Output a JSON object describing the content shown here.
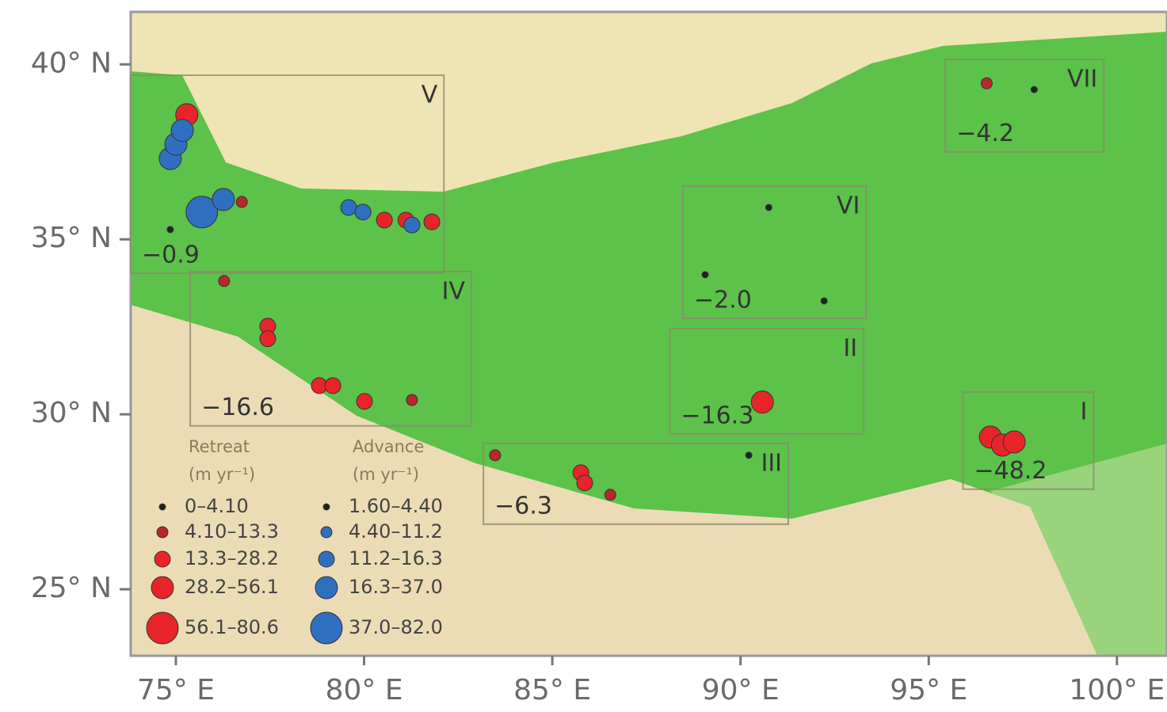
{
  "map": {
    "xlim": [
      73.8,
      101.33
    ],
    "ylim": [
      23.1,
      41.5
    ],
    "xticks": [
      {
        "value": 75,
        "label": "75° E"
      },
      {
        "value": 80,
        "label": "80° E"
      },
      {
        "value": 85,
        "label": "85° E"
      },
      {
        "value": 90,
        "label": "90° E"
      },
      {
        "value": 95,
        "label": "95° E"
      },
      {
        "value": 100,
        "label": "100° E"
      }
    ],
    "yticks": [
      {
        "value": 40,
        "label": "40° N"
      },
      {
        "value": 35,
        "label": "35° N"
      },
      {
        "value": 30,
        "label": "30° N"
      },
      {
        "value": 25,
        "label": "25° N"
      }
    ],
    "regions": [
      {
        "label": "V",
        "value": "−0.9",
        "lon": [
          73.8,
          82.12
        ],
        "lat": [
          34.03,
          39.69
        ]
      },
      {
        "label": "VII",
        "value": "−4.2",
        "lon": [
          95.44,
          99.65
        ],
        "lat": [
          37.5,
          40.14
        ]
      },
      {
        "label": "VI",
        "value": "−2.0",
        "lon": [
          88.47,
          93.34
        ],
        "lat": [
          32.74,
          36.52
        ]
      },
      {
        "label": "IV",
        "value": "−16.6",
        "lon": [
          75.38,
          82.85
        ],
        "lat": [
          29.67,
          34.08
        ]
      },
      {
        "label": "II",
        "value": "−16.3",
        "lon": [
          88.12,
          93.27
        ],
        "lat": [
          29.44,
          32.45
        ]
      },
      {
        "label": "III",
        "value": "−6.3",
        "lon": [
          83.17,
          91.27
        ],
        "lat": [
          26.86,
          29.17
        ]
      },
      {
        "label": "I",
        "value": "−48.2",
        "lon": [
          95.91,
          99.38
        ],
        "lat": [
          27.86,
          30.64
        ]
      }
    ],
    "markers": [
      {
        "kind": "retreat",
        "class": 3,
        "lon": 75.29,
        "lat": 38.56
      },
      {
        "kind": "advance",
        "class": 3,
        "lon": 74.85,
        "lat": 37.31
      },
      {
        "kind": "advance",
        "class": 3,
        "lon": 75.0,
        "lat": 37.72
      },
      {
        "kind": "advance",
        "class": 3,
        "lon": 75.17,
        "lat": 38.11
      },
      {
        "kind": "advance",
        "class": 4,
        "lon": 75.69,
        "lat": 35.78
      },
      {
        "kind": "advance",
        "class": 3,
        "lon": 76.26,
        "lat": 36.14
      },
      {
        "kind": "retreat",
        "class": 1,
        "lon": 76.75,
        "lat": 36.07
      },
      {
        "kind": "retreat",
        "class": 0,
        "lon": 74.85,
        "lat": 35.28
      },
      {
        "kind": "advance",
        "class": 2,
        "lon": 79.59,
        "lat": 35.91
      },
      {
        "kind": "advance",
        "class": 2,
        "lon": 79.97,
        "lat": 35.78
      },
      {
        "kind": "retreat",
        "class": 2,
        "lon": 80.54,
        "lat": 35.55
      },
      {
        "kind": "retreat",
        "class": 2,
        "lon": 81.11,
        "lat": 35.55
      },
      {
        "kind": "advance",
        "class": 2,
        "lon": 81.27,
        "lat": 35.41
      },
      {
        "kind": "retreat",
        "class": 2,
        "lon": 81.8,
        "lat": 35.5
      },
      {
        "kind": "retreat",
        "class": 1,
        "lon": 76.28,
        "lat": 33.81
      },
      {
        "kind": "retreat",
        "class": 2,
        "lon": 77.44,
        "lat": 32.52
      },
      {
        "kind": "retreat",
        "class": 2,
        "lon": 77.44,
        "lat": 32.16
      },
      {
        "kind": "retreat",
        "class": 2,
        "lon": 78.81,
        "lat": 30.82
      },
      {
        "kind": "retreat",
        "class": 2,
        "lon": 79.17,
        "lat": 30.82
      },
      {
        "kind": "retreat",
        "class": 2,
        "lon": 80.01,
        "lat": 30.37
      },
      {
        "kind": "retreat",
        "class": 1,
        "lon": 81.27,
        "lat": 30.41
      },
      {
        "kind": "retreat",
        "class": 1,
        "lon": 83.48,
        "lat": 28.83
      },
      {
        "kind": "retreat",
        "class": 2,
        "lon": 85.76,
        "lat": 28.33
      },
      {
        "kind": "retreat",
        "class": 2,
        "lon": 85.86,
        "lat": 28.04
      },
      {
        "kind": "retreat",
        "class": 1,
        "lon": 86.54,
        "lat": 27.7
      },
      {
        "kind": "retreat",
        "class": 3,
        "lon": 90.58,
        "lat": 30.35
      },
      {
        "kind": "retreat",
        "class": 1,
        "lon": 96.54,
        "lat": 39.46
      },
      {
        "kind": "retreat",
        "class": 3,
        "lon": 96.64,
        "lat": 29.35
      },
      {
        "kind": "retreat",
        "class": 3,
        "lon": 96.96,
        "lat": 29.12
      },
      {
        "kind": "retreat",
        "class": 3,
        "lon": 97.27,
        "lat": 29.21
      },
      {
        "kind": "retreat",
        "class": 0,
        "lon": 90.75,
        "lat": 35.91
      },
      {
        "kind": "retreat",
        "class": 0,
        "lon": 89.06,
        "lat": 33.99
      },
      {
        "kind": "retreat",
        "class": 0,
        "lon": 92.22,
        "lat": 33.24
      },
      {
        "kind": "retreat",
        "class": 0,
        "lon": 90.22,
        "lat": 28.83
      },
      {
        "kind": "retreat",
        "class": 0,
        "lon": 97.8,
        "lat": 39.28
      }
    ],
    "legend": {
      "retreat": {
        "title": "Retreat",
        "unit": "(m yr⁻¹)",
        "colors": [
          "#222222",
          "#b8282b",
          "#e8242b",
          "#e8242b",
          "#e8242b"
        ],
        "classes": [
          "0–4.10",
          "4.10–13.3",
          "13.3–28.2",
          "28.2–56.1",
          "56.1–80.6"
        ]
      },
      "advance": {
        "title": "Advance",
        "unit": "(m yr⁻¹)",
        "colors": [
          "#222222",
          "#2f6fc0",
          "#2f6fc0",
          "#2f6fc0",
          "#2f6fc0"
        ],
        "classes": [
          "1.60–4.40",
          "4.40–11.2",
          "11.2–16.3",
          "16.3–37.0",
          "37.0–82.0"
        ]
      }
    }
  }
}
